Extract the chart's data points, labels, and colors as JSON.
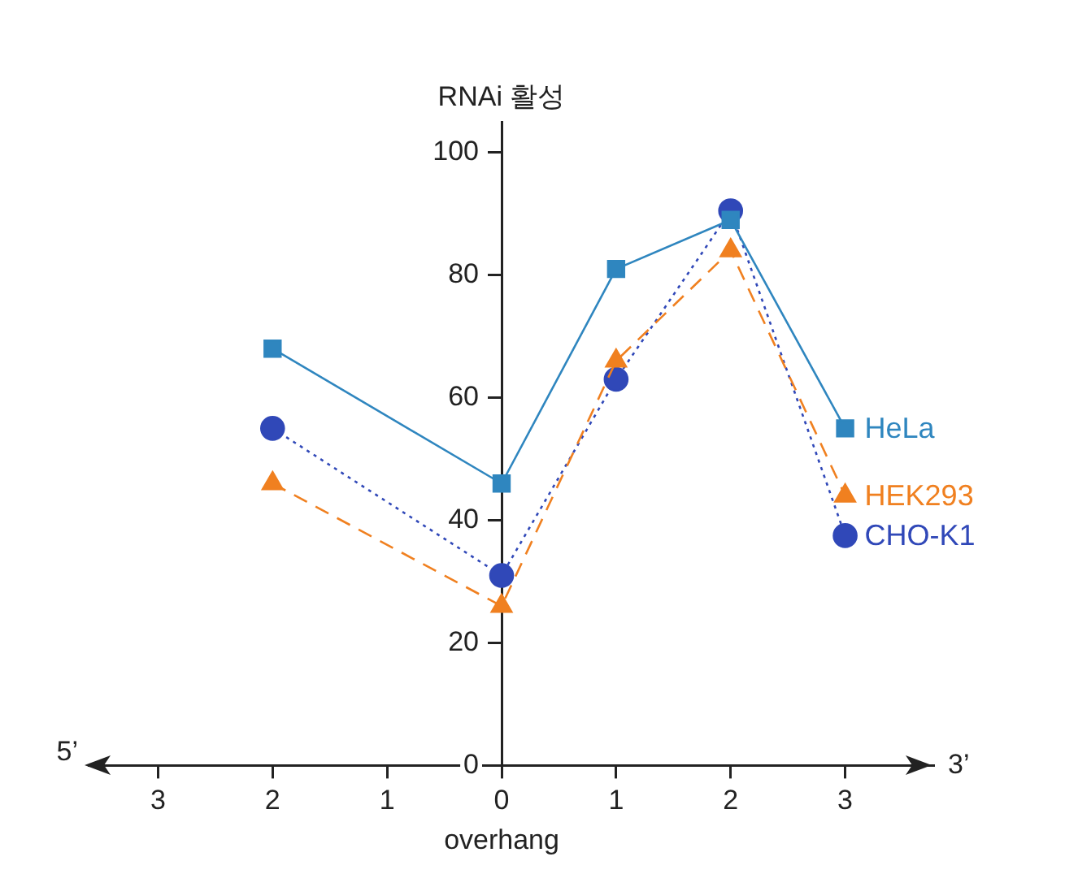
{
  "chart_data": {
    "type": "line",
    "xlabel": "overhang",
    "ylabel": "RNAi 활성",
    "categories": [
      "3",
      "2",
      "1",
      "0",
      "1",
      "2",
      "3"
    ],
    "ylim": [
      0,
      105
    ],
    "yticks": [
      0,
      20,
      40,
      60,
      80,
      100
    ],
    "grid": false,
    "legend": false,
    "annotations": [
      "5’",
      "3’"
    ],
    "series": [
      {
        "name": "HeLa",
        "color": "#2f86bf",
        "marker": "square",
        "line_style": "solid",
        "values": [
          null,
          68,
          null,
          46,
          81,
          89,
          55
        ]
      },
      {
        "name": "HEK293",
        "color": "#f08020",
        "marker": "triangle",
        "line_style": "dashed",
        "values": [
          null,
          46,
          null,
          26,
          66,
          84,
          44
        ]
      },
      {
        "name": "CHO-K1",
        "color": "#3048b8",
        "marker": "circle",
        "line_style": "dotted",
        "values": [
          null,
          55,
          null,
          31,
          63,
          90.5,
          37.5
        ]
      }
    ]
  }
}
